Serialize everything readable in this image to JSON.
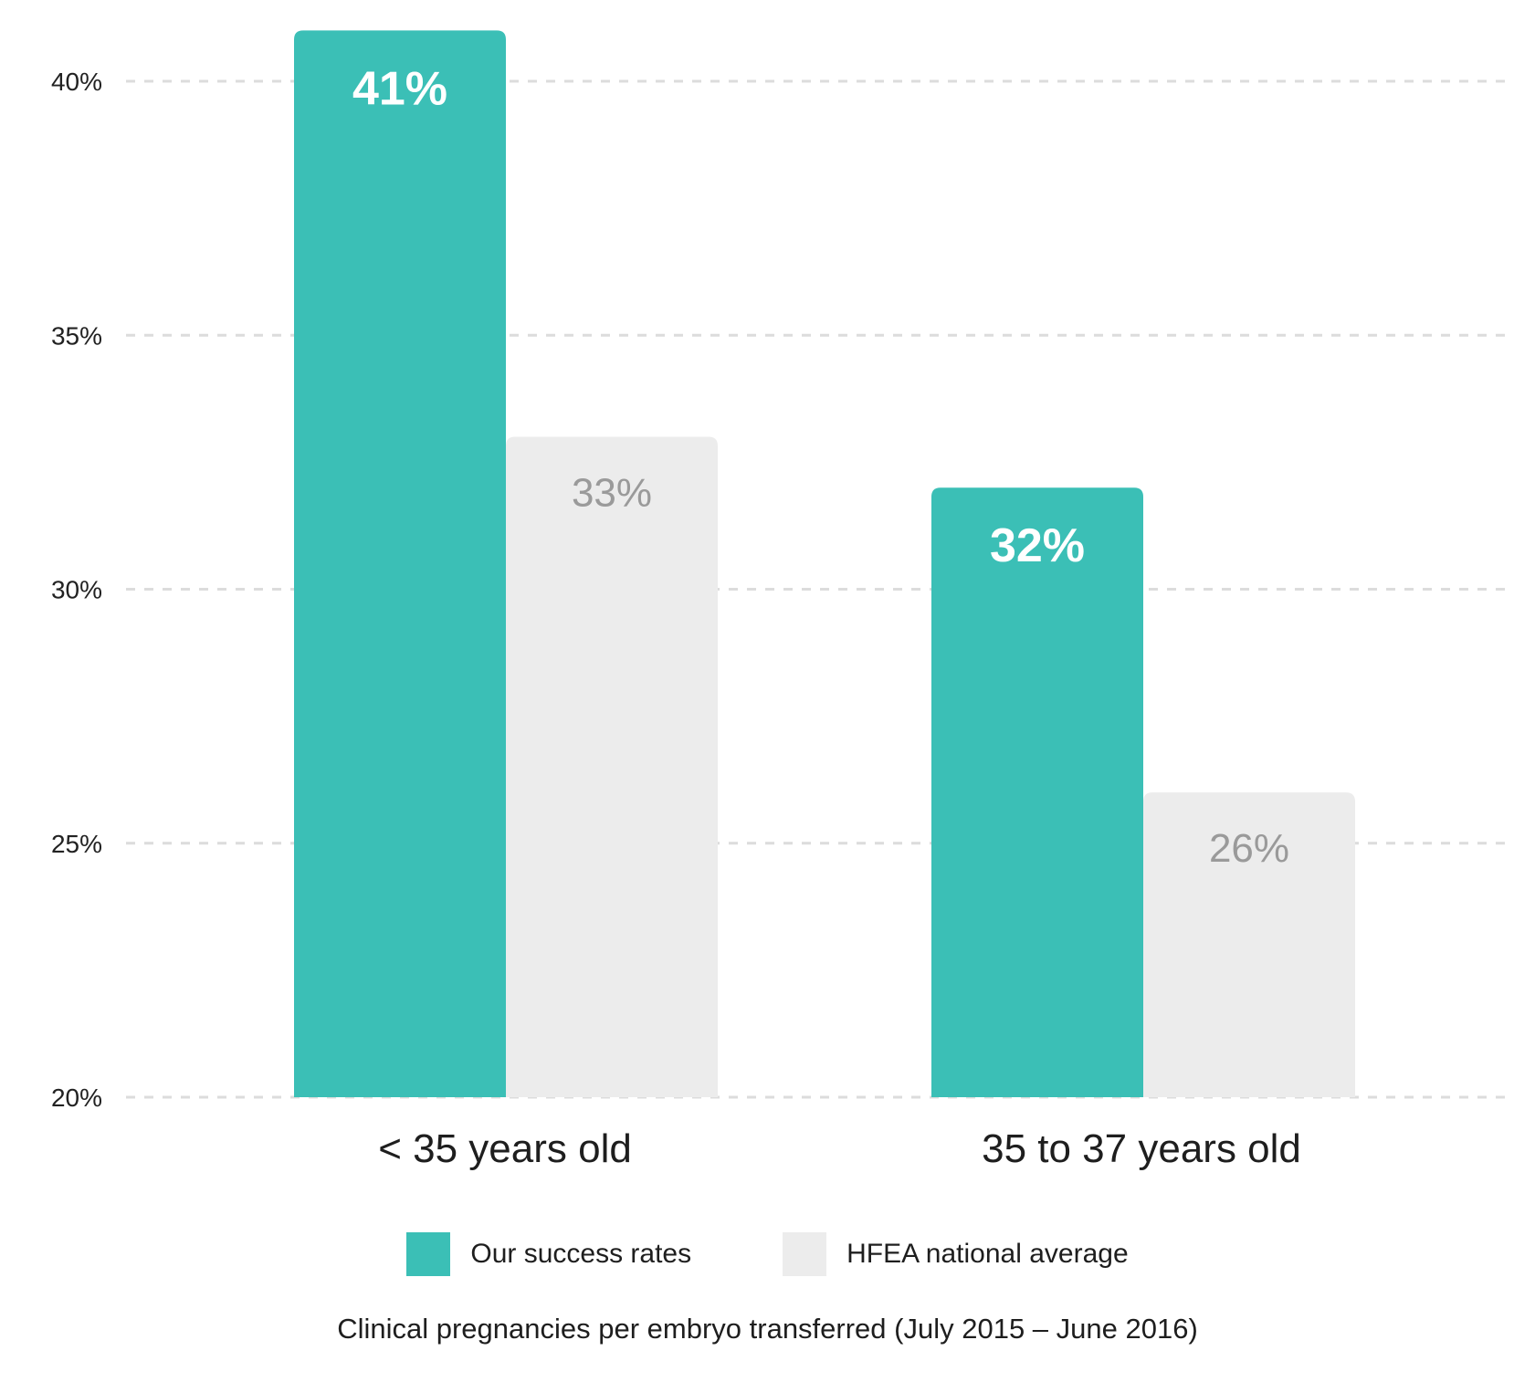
{
  "chart_data": {
    "type": "bar",
    "categories": [
      "< 35 years old",
      "35 to 37 years old"
    ],
    "series": [
      {
        "name": "Our success rates",
        "values": [
          41,
          32
        ],
        "labels": [
          "41%",
          "32%"
        ],
        "color": "#3bbfb6"
      },
      {
        "name": "HFEA national average",
        "values": [
          33,
          26
        ],
        "labels": [
          "33%",
          "26%"
        ],
        "color": "#ececec"
      }
    ],
    "yticks": [
      "20%",
      "25%",
      "30%",
      "35%",
      "40%"
    ],
    "ytick_values": [
      20,
      25,
      30,
      35,
      40
    ],
    "ylim": [
      20,
      40.5
    ],
    "grid": true,
    "legend_position": "bottom",
    "caption": "Clinical pregnancies per embryo transferred (July 2015 – June 2016)"
  },
  "legend": {
    "items": [
      {
        "label": "Our success rates",
        "color": "#3bbfb6"
      },
      {
        "label": "HFEA national average",
        "color": "#ececec"
      }
    ]
  }
}
